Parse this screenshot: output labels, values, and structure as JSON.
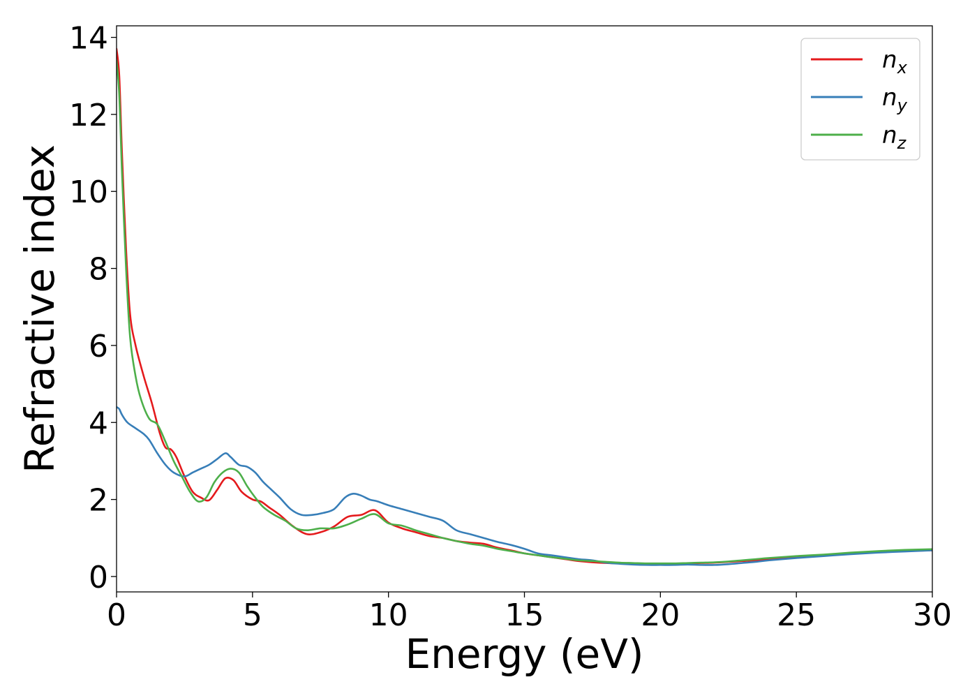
{
  "chart_data": {
    "type": "line",
    "xlabel": "Energy (eV)",
    "ylabel": "Refractive index",
    "xlim": [
      0,
      30
    ],
    "ylim": [
      -0.4,
      14.3
    ],
    "xticks": [
      0,
      5,
      10,
      15,
      20,
      25,
      30
    ],
    "yticks": [
      0,
      2,
      4,
      6,
      8,
      10,
      12,
      14
    ],
    "grid": false,
    "legend_position": "top-right",
    "series": [
      {
        "name": "n_x",
        "label_base": "n",
        "label_sub": "x",
        "color": "#e41a1c",
        "x": [
          0,
          0.1,
          0.2,
          0.35,
          0.5,
          0.7,
          1.0,
          1.3,
          1.6,
          1.8,
          2.0,
          2.2,
          2.5,
          2.8,
          3.1,
          3.4,
          3.7,
          4.0,
          4.3,
          4.6,
          5.0,
          5.3,
          5.6,
          6.0,
          6.5,
          7.0,
          7.5,
          8.0,
          8.5,
          9.0,
          9.5,
          10.0,
          10.5,
          11.0,
          11.5,
          12.0,
          12.5,
          13.0,
          13.5,
          14.0,
          14.5,
          15.0,
          15.5,
          16.0,
          16.5,
          17.0,
          17.5,
          18.0,
          18.5,
          19.0,
          19.5,
          20.0,
          20.5,
          21.0,
          21.5,
          22.0,
          22.5,
          23.0,
          23.5,
          24.0,
          25.0,
          26.0,
          27.0,
          28.0,
          29.0,
          30.0
        ],
        "y": [
          13.7,
          13.0,
          11.0,
          8.5,
          6.8,
          6.0,
          5.2,
          4.5,
          3.7,
          3.35,
          3.3,
          3.1,
          2.6,
          2.2,
          2.05,
          1.98,
          2.25,
          2.55,
          2.5,
          2.2,
          2.0,
          1.95,
          1.8,
          1.6,
          1.3,
          1.1,
          1.15,
          1.3,
          1.55,
          1.6,
          1.72,
          1.4,
          1.25,
          1.15,
          1.05,
          1.0,
          0.92,
          0.88,
          0.85,
          0.75,
          0.68,
          0.6,
          0.55,
          0.5,
          0.45,
          0.4,
          0.37,
          0.35,
          0.34,
          0.33,
          0.32,
          0.32,
          0.33,
          0.34,
          0.35,
          0.36,
          0.38,
          0.4,
          0.42,
          0.45,
          0.5,
          0.55,
          0.6,
          0.63,
          0.66,
          0.68
        ]
      },
      {
        "name": "n_y",
        "label_base": "n",
        "label_sub": "y",
        "color": "#377eb8",
        "x": [
          0,
          0.1,
          0.2,
          0.4,
          0.7,
          1.0,
          1.2,
          1.5,
          1.8,
          2.1,
          2.5,
          2.8,
          3.1,
          3.4,
          3.7,
          4.0,
          4.2,
          4.5,
          4.8,
          5.1,
          5.4,
          5.7,
          6.0,
          6.4,
          6.8,
          7.2,
          7.6,
          8.0,
          8.4,
          8.7,
          9.0,
          9.3,
          9.6,
          10.0,
          10.5,
          11.0,
          11.5,
          12.0,
          12.5,
          13.0,
          13.5,
          14.0,
          14.5,
          15.0,
          15.5,
          16.0,
          16.5,
          17.0,
          17.5,
          18.0,
          18.5,
          19.0,
          19.5,
          20.0,
          20.5,
          21.0,
          21.5,
          22.0,
          22.5,
          23.0,
          23.5,
          24.0,
          25.0,
          26.0,
          27.0,
          28.0,
          29.0,
          30.0
        ],
        "y": [
          4.4,
          4.35,
          4.2,
          4.0,
          3.85,
          3.7,
          3.55,
          3.2,
          2.9,
          2.7,
          2.6,
          2.7,
          2.8,
          2.9,
          3.05,
          3.2,
          3.1,
          2.9,
          2.85,
          2.7,
          2.45,
          2.25,
          2.05,
          1.75,
          1.6,
          1.6,
          1.65,
          1.75,
          2.05,
          2.15,
          2.1,
          2.0,
          1.95,
          1.85,
          1.75,
          1.65,
          1.55,
          1.45,
          1.2,
          1.1,
          1.0,
          0.9,
          0.82,
          0.72,
          0.6,
          0.55,
          0.5,
          0.45,
          0.42,
          0.36,
          0.33,
          0.31,
          0.3,
          0.3,
          0.3,
          0.31,
          0.3,
          0.3,
          0.32,
          0.35,
          0.38,
          0.42,
          0.48,
          0.53,
          0.58,
          0.62,
          0.65,
          0.68
        ]
      },
      {
        "name": "n_z",
        "label_base": "n",
        "label_sub": "z",
        "color": "#4daf4a",
        "x": [
          0,
          0.1,
          0.2,
          0.35,
          0.5,
          0.7,
          0.9,
          1.2,
          1.5,
          1.8,
          2.1,
          2.4,
          2.7,
          3.0,
          3.3,
          3.6,
          3.9,
          4.2,
          4.5,
          4.8,
          5.1,
          5.4,
          5.8,
          6.2,
          6.6,
          7.0,
          7.5,
          8.0,
          8.5,
          9.0,
          9.5,
          10.0,
          10.5,
          11.0,
          11.5,
          12.0,
          12.5,
          13.0,
          13.5,
          14.0,
          14.5,
          15.0,
          15.5,
          16.0,
          16.5,
          17.0,
          17.5,
          18.0,
          18.5,
          19.0,
          19.5,
          20.0,
          20.5,
          21.0,
          21.5,
          22.0,
          22.5,
          23.0,
          23.5,
          24.0,
          25.0,
          26.0,
          27.0,
          28.0,
          29.0,
          30.0
        ],
        "y": [
          13.4,
          12.5,
          10.5,
          8.0,
          6.2,
          5.2,
          4.6,
          4.1,
          3.95,
          3.5,
          3.0,
          2.6,
          2.2,
          1.95,
          2.05,
          2.45,
          2.7,
          2.8,
          2.7,
          2.35,
          2.05,
          1.8,
          1.6,
          1.45,
          1.25,
          1.2,
          1.25,
          1.25,
          1.35,
          1.5,
          1.62,
          1.38,
          1.32,
          1.2,
          1.1,
          1.0,
          0.92,
          0.85,
          0.8,
          0.72,
          0.66,
          0.6,
          0.55,
          0.5,
          0.46,
          0.42,
          0.4,
          0.38,
          0.36,
          0.35,
          0.34,
          0.34,
          0.34,
          0.35,
          0.36,
          0.37,
          0.39,
          0.42,
          0.45,
          0.48,
          0.53,
          0.57,
          0.62,
          0.66,
          0.69,
          0.71
        ]
      }
    ]
  }
}
